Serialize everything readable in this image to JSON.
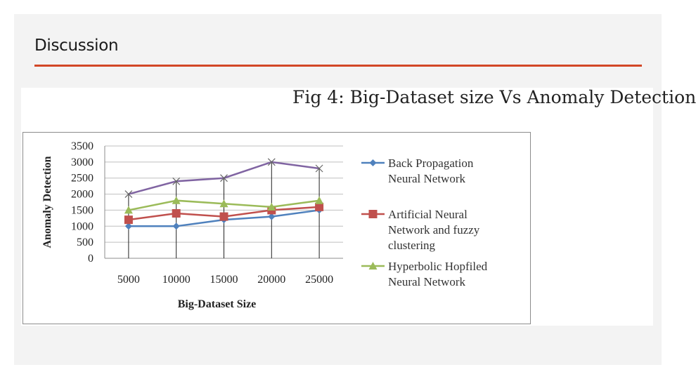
{
  "slide": {
    "title": "Discussion",
    "accent_color": "#d24726"
  },
  "figure": {
    "caption": "Fig 4: Big-Dataset size Vs Anomaly Detection"
  },
  "chart_data": {
    "type": "line",
    "title": "",
    "xlabel": "Big-Dataset Size",
    "ylabel": "Anomaly Detection",
    "categories": [
      "5000",
      "10000",
      "15000",
      "20000",
      "25000"
    ],
    "ylim": [
      0,
      3500
    ],
    "yticks": [
      "0",
      "500",
      "1000",
      "1500",
      "2000",
      "2500",
      "3000",
      "3500"
    ],
    "grid": true,
    "legend_position": "right",
    "series": [
      {
        "name": "Back Propagation Neural Network",
        "legend_lines": [
          "Back Propagation",
          "Neural Network"
        ],
        "marker": "diamond",
        "color": "#4f81bd",
        "values": [
          1000,
          1000,
          1200,
          1300,
          1500
        ]
      },
      {
        "name": "Artificial Neural Network and fuzzy clustering",
        "legend_lines": [
          "Artificial Neural",
          "Network and fuzzy",
          "clustering"
        ],
        "marker": "square",
        "color": "#c0504d",
        "values": [
          1200,
          1400,
          1300,
          1500,
          1600
        ]
      },
      {
        "name": "Hyperbolic Hopfiled Neural Network",
        "legend_lines": [
          "Hyperbolic Hopfiled",
          "Neural Network"
        ],
        "marker": "triangle",
        "color": "#9bbb59",
        "values": [
          1500,
          1800,
          1700,
          1600,
          1800
        ]
      },
      {
        "name": "",
        "legend_lines": [],
        "marker": "x",
        "color": "#8064a2",
        "values": [
          2000,
          2400,
          2500,
          3000,
          2800
        ]
      }
    ]
  }
}
